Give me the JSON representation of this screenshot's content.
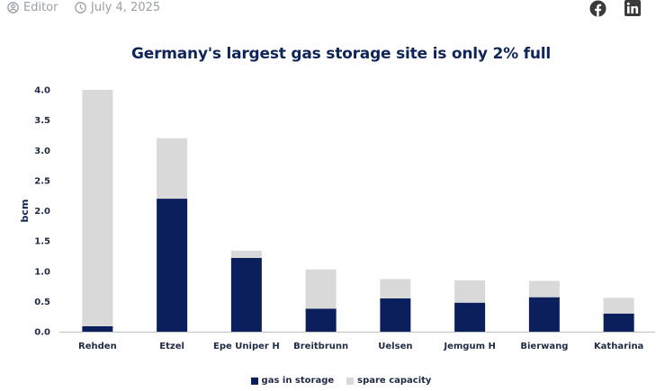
{
  "meta": {
    "author": "Editor",
    "author_icon": "user-circle-icon",
    "date": "July 4, 2025",
    "date_icon": "clock-icon"
  },
  "share": {
    "facebook_icon": "facebook-icon",
    "linkedin_icon": "linkedin-icon"
  },
  "colors": {
    "gas_in_storage": "#0b1f5c",
    "spare_capacity": "#d9d9d9",
    "title": "#0f2559",
    "meta_text": "#9aa0a6"
  },
  "chart_data": {
    "type": "bar",
    "stacked": true,
    "title": "Germany's largest gas storage site is only 2% full",
    "xlabel": "",
    "ylabel": "bcm",
    "ylim": [
      0,
      4.0
    ],
    "yticks": [
      "0.0",
      "0.5",
      "1.0",
      "1.5",
      "2.0",
      "2.5",
      "3.0",
      "3.5",
      "4.0"
    ],
    "grid": false,
    "legend_position": "bottom",
    "categories": [
      "Rehden",
      "Etzel",
      "Epe Uniper H",
      "Breitbrunn",
      "Uelsen",
      "Jemgum H",
      "Bierwang",
      "Katharina"
    ],
    "series": [
      {
        "name": "gas in storage",
        "values": [
          0.09,
          2.2,
          1.22,
          0.38,
          0.55,
          0.48,
          0.57,
          0.3
        ]
      },
      {
        "name": "spare capacity",
        "values": [
          3.91,
          1.0,
          0.12,
          0.65,
          0.32,
          0.37,
          0.27,
          0.26
        ]
      }
    ]
  }
}
